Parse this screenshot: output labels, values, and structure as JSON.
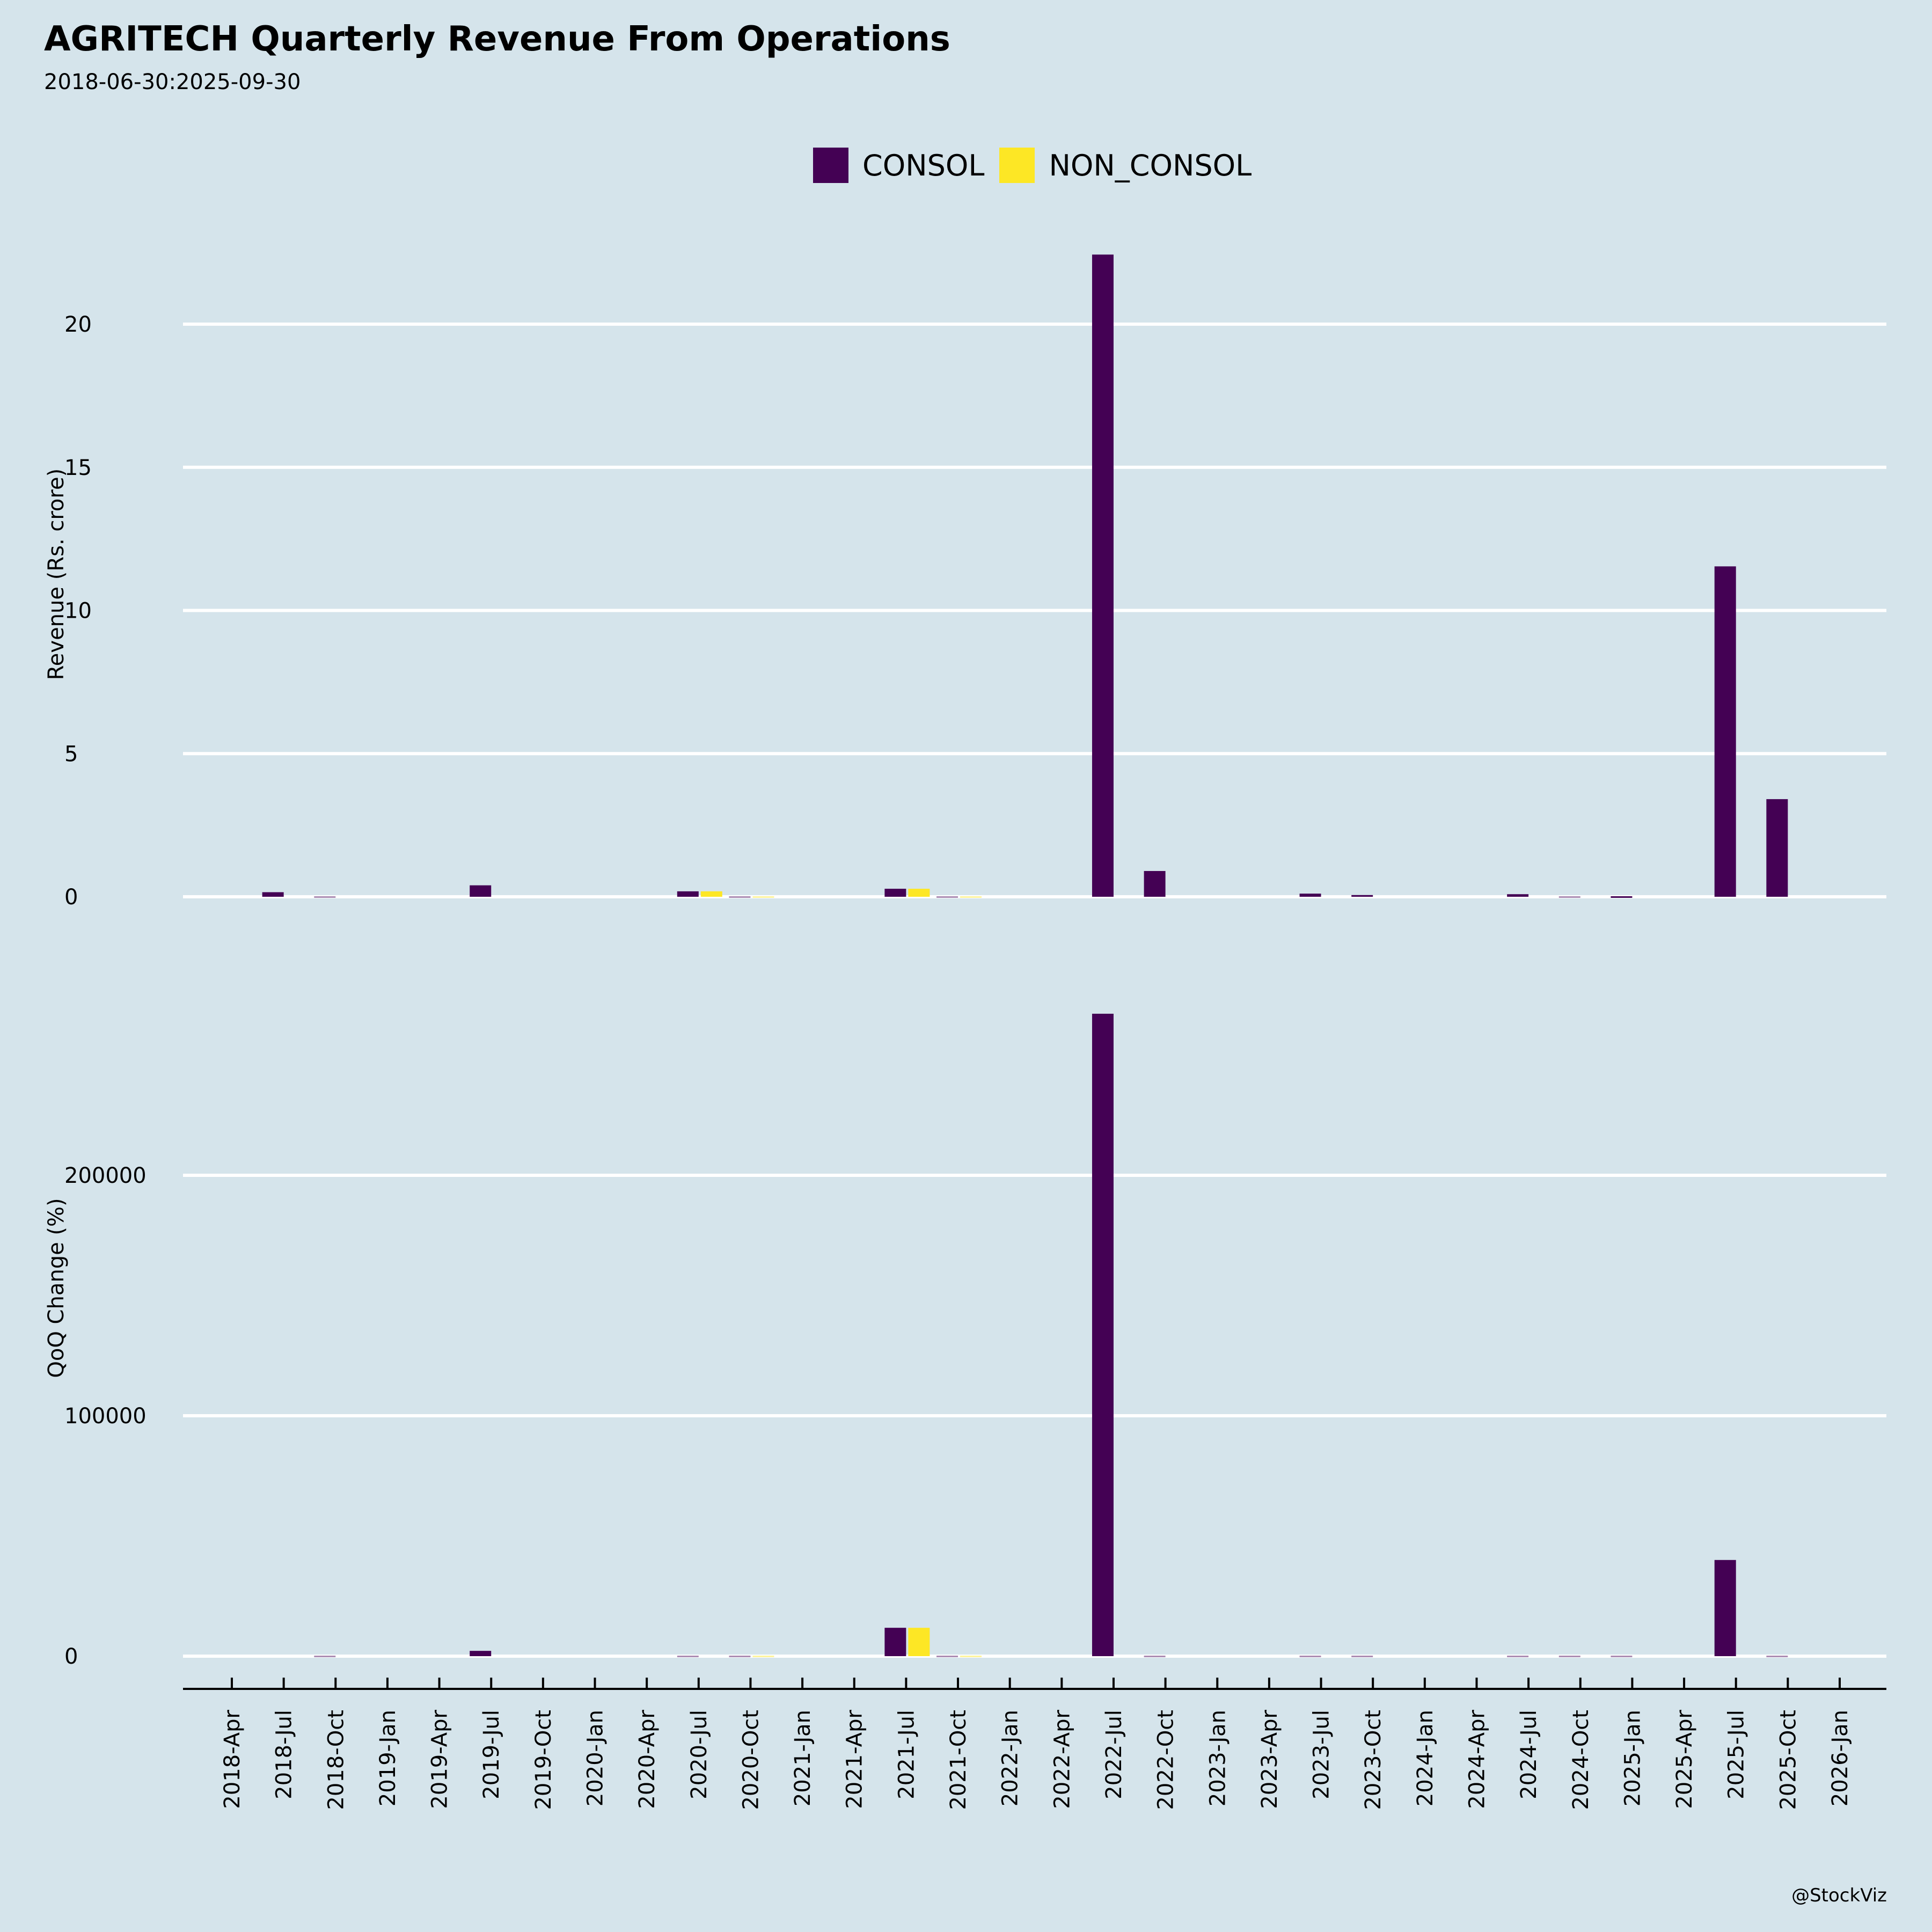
{
  "header": {
    "title": "AGRITECH Quarterly Revenue From Operations",
    "subtitle": "2018-06-30:2025-09-30"
  },
  "legend": {
    "items": [
      {
        "label": "CONSOL",
        "color": "#440154"
      },
      {
        "label": "NON_CONSOL",
        "color": "#fde725"
      }
    ]
  },
  "watermark": "@StockViz",
  "colors": {
    "background": "#d5e4eb",
    "grid": "#ffffff",
    "consol": "#440154",
    "non_consol": "#fde725"
  },
  "chart_data": [
    {
      "type": "bar",
      "title": "AGRITECH Quarterly Revenue From Operations",
      "subtitle": "2018-06-30:2025-09-30",
      "xlabel": "",
      "ylabel": "Revenue (Rs. crore)",
      "ylim": [
        0,
        23
      ],
      "yticks": [
        0,
        5,
        10,
        15,
        20
      ],
      "grid": true,
      "legend_position": "top-center",
      "x_ticks": [
        "2018-Apr",
        "2018-Jul",
        "2018-Oct",
        "2019-Jan",
        "2019-Apr",
        "2019-Jul",
        "2019-Oct",
        "2020-Jan",
        "2020-Apr",
        "2020-Jul",
        "2020-Oct",
        "2021-Jan",
        "2021-Apr",
        "2021-Jul",
        "2021-Oct",
        "2022-Jan",
        "2022-Apr",
        "2022-Jul",
        "2022-Oct",
        "2023-Jan",
        "2023-Apr",
        "2023-Jul",
        "2023-Oct",
        "2024-Jan",
        "2024-Apr",
        "2024-Jul",
        "2024-Oct",
        "2025-Jan",
        "2025-Apr",
        "2025-Jul",
        "2025-Oct",
        "2026-Jan"
      ],
      "series": [
        {
          "name": "CONSOL",
          "points": [
            {
              "x": "2018-Jul",
              "y": 0.16
            },
            {
              "x": "2018-Oct",
              "y": 0.02
            },
            {
              "x": "2019-Jul",
              "y": 0.4
            },
            {
              "x": "2020-Jul",
              "y": 0.19
            },
            {
              "x": "2020-Oct",
              "y": 0.01
            },
            {
              "x": "2021-Jul",
              "y": 0.28
            },
            {
              "x": "2021-Oct",
              "y": 0.01
            },
            {
              "x": "2022-Jul",
              "y": 22.43
            },
            {
              "x": "2022-Oct",
              "y": 0.9
            },
            {
              "x": "2023-Jul",
              "y": 0.11
            },
            {
              "x": "2023-Oct",
              "y": 0.06
            },
            {
              "x": "2024-Jul",
              "y": 0.09
            },
            {
              "x": "2024-Oct",
              "y": 0.02
            },
            {
              "x": "2025-Jan",
              "y": 0.04
            },
            {
              "x": "2025-Jul",
              "y": 11.54
            },
            {
              "x": "2025-Oct",
              "y": 3.41
            }
          ]
        },
        {
          "name": "NON_CONSOL",
          "points": [
            {
              "x": "2020-Jul",
              "y": 0.19
            },
            {
              "x": "2020-Oct",
              "y": 0.01
            },
            {
              "x": "2021-Jul",
              "y": 0.28
            },
            {
              "x": "2021-Oct",
              "y": 0.01
            }
          ]
        }
      ]
    },
    {
      "type": "bar",
      "title": "",
      "xlabel": "",
      "ylabel": "QoQ Change (%)",
      "ylim": [
        -13000,
        275000
      ],
      "yticks": [
        0,
        100000,
        200000
      ],
      "grid": true,
      "x_ticks": [
        "2018-Apr",
        "2018-Jul",
        "2018-Oct",
        "2019-Jan",
        "2019-Apr",
        "2019-Jul",
        "2019-Oct",
        "2020-Jan",
        "2020-Apr",
        "2020-Jul",
        "2020-Oct",
        "2021-Jan",
        "2021-Apr",
        "2021-Jul",
        "2021-Oct",
        "2022-Jan",
        "2022-Apr",
        "2022-Jul",
        "2022-Oct",
        "2023-Jan",
        "2023-Apr",
        "2023-Jul",
        "2023-Oct",
        "2024-Jan",
        "2024-Apr",
        "2024-Jul",
        "2024-Oct",
        "2025-Jan",
        "2025-Apr",
        "2025-Jul",
        "2025-Oct",
        "2026-Jan"
      ],
      "series": [
        {
          "name": "CONSOL",
          "points": [
            {
              "x": "2018-Oct",
              "y": -90
            },
            {
              "x": "2019-Jul",
              "y": 2200
            },
            {
              "x": "2020-Jul",
              "y": -50
            },
            {
              "x": "2020-Oct",
              "y": -95
            },
            {
              "x": "2021-Jul",
              "y": 11800
            },
            {
              "x": "2021-Oct",
              "y": -97
            },
            {
              "x": "2022-Jul",
              "y": 267200
            },
            {
              "x": "2022-Oct",
              "y": -96
            },
            {
              "x": "2023-Jul",
              "y": -88
            },
            {
              "x": "2023-Oct",
              "y": -45
            },
            {
              "x": "2024-Jul",
              "y": -50
            },
            {
              "x": "2024-Oct",
              "y": -78
            },
            {
              "x": "2025-Jan",
              "y": 100
            },
            {
              "x": "2025-Jul",
              "y": 40000
            },
            {
              "x": "2025-Oct",
              "y": -70
            }
          ]
        },
        {
          "name": "NON_CONSOL",
          "points": [
            {
              "x": "2020-Oct",
              "y": -95
            },
            {
              "x": "2021-Jul",
              "y": 11800
            },
            {
              "x": "2021-Oct",
              "y": -97
            }
          ]
        }
      ]
    }
  ]
}
